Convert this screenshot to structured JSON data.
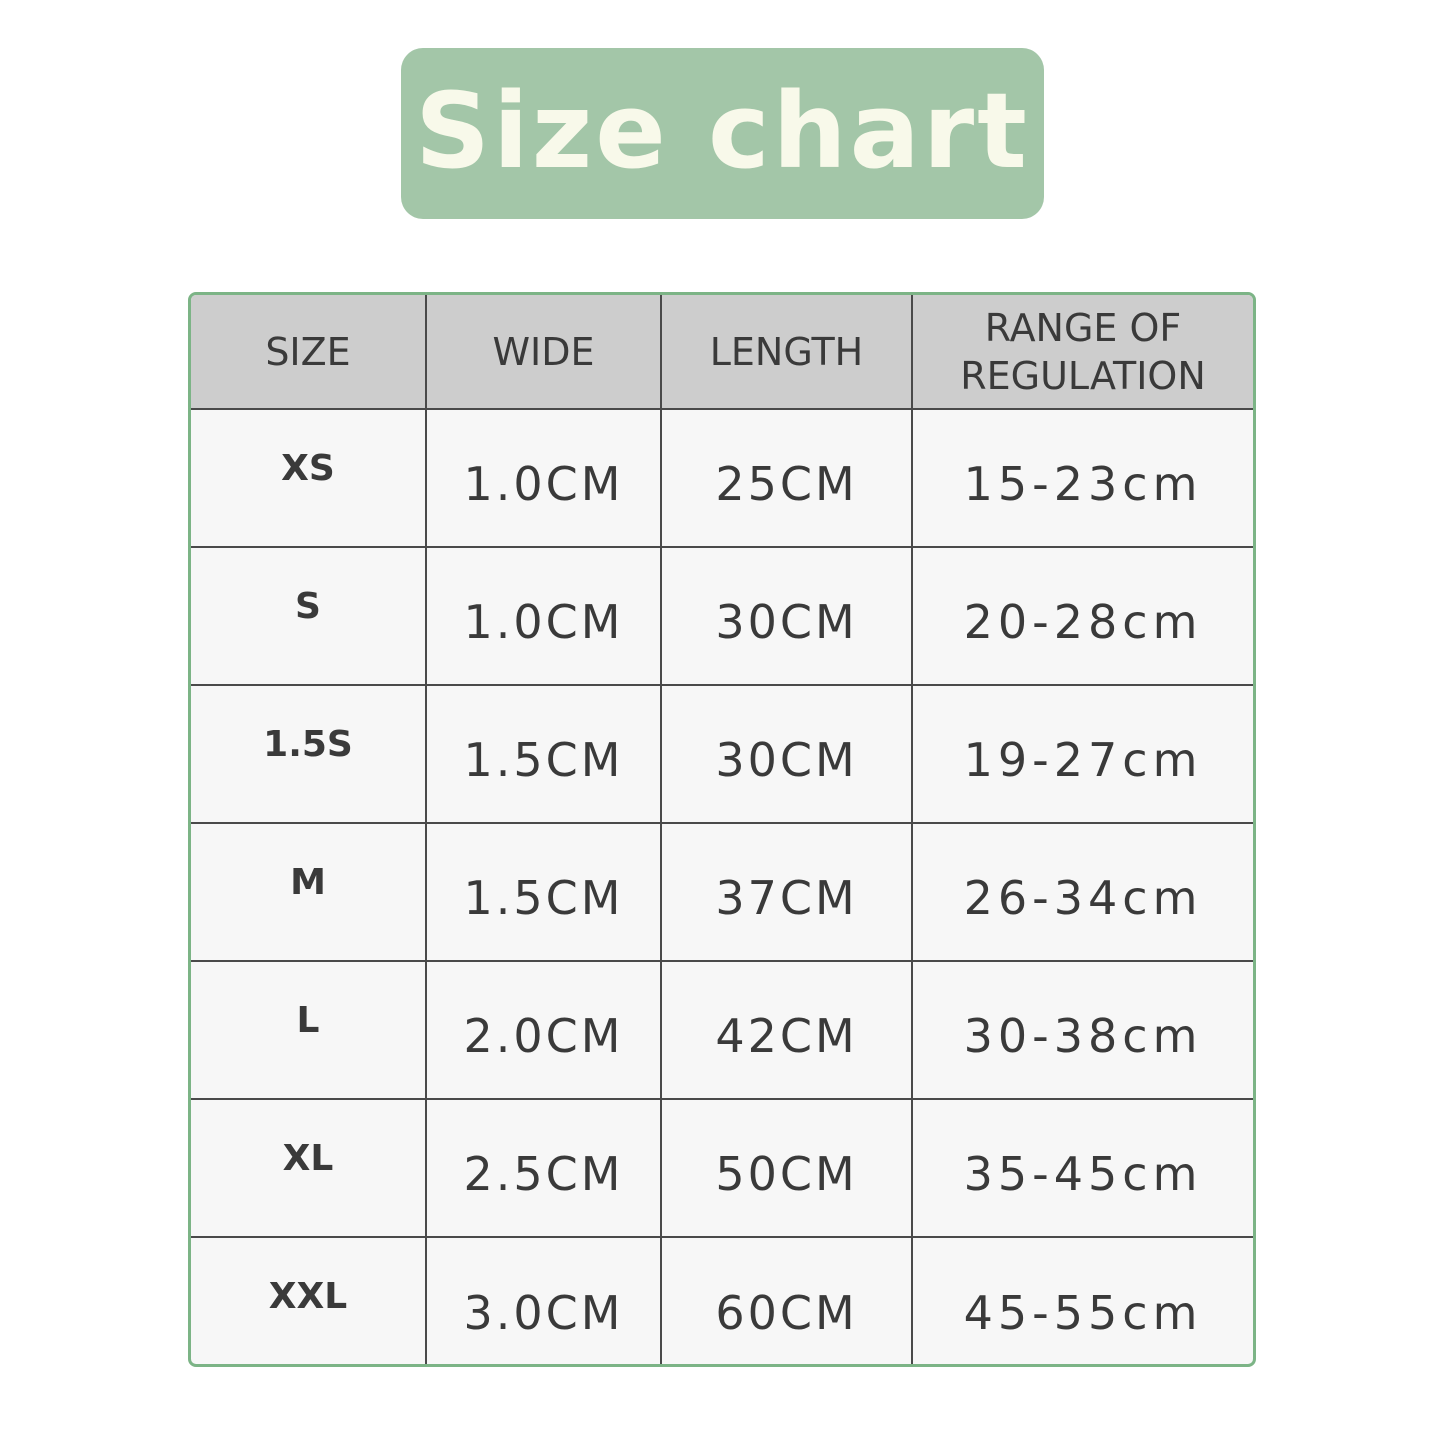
{
  "title": "Size chart",
  "colors": {
    "title_bg": "#a3c6a8",
    "title_text": "#f8f9ea",
    "border": "#7cb486",
    "header_bg": "#cdcdcd"
  },
  "headers": [
    "SIZE",
    "WIDE",
    "LENGTH",
    "RANGE OF REGULATION"
  ],
  "rows": [
    {
      "size": "XS",
      "wide": "1.0CM",
      "length": "25CM",
      "range": "15-23cm"
    },
    {
      "size": "S",
      "wide": "1.0CM",
      "length": "30CM",
      "range": "20-28cm"
    },
    {
      "size": "1.5S",
      "wide": "1.5CM",
      "length": "30CM",
      "range": "19-27cm"
    },
    {
      "size": "M",
      "wide": "1.5CM",
      "length": "37CM",
      "range": "26-34cm"
    },
    {
      "size": "L",
      "wide": "2.0CM",
      "length": "42CM",
      "range": "30-38cm"
    },
    {
      "size": "XL",
      "wide": "2.5CM",
      "length": "50CM",
      "range": "35-45cm"
    },
    {
      "size": "XXL",
      "wide": "3.0CM",
      "length": "60CM",
      "range": "45-55cm"
    }
  ]
}
